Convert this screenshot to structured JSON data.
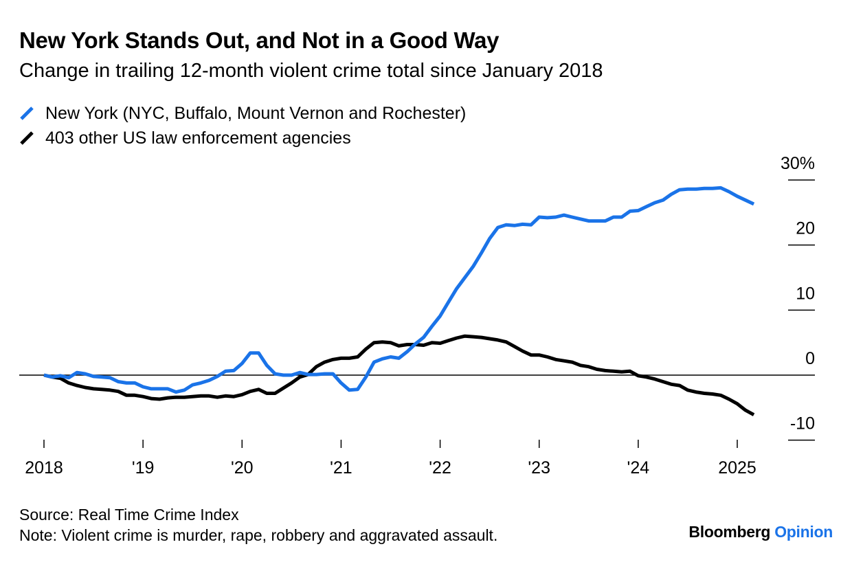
{
  "header": {
    "title": "New York Stands Out, and Not in a Good Way",
    "subtitle": "Change in trailing 12-month violent crime total since January 2018"
  },
  "legend": [
    {
      "label": "New York (NYC, Buffalo, Mount Vernon and Rochester)",
      "color": "#1a73e8"
    },
    {
      "label": "403 other US law enforcement agencies",
      "color": "#000000"
    }
  ],
  "footer": {
    "source": "Source: Real Time Crime Index",
    "note": "Note: Violent crime is murder, rape, robbery and aggravated assault."
  },
  "brand": {
    "name": "Bloomberg",
    "section": "Opinion"
  },
  "chart_data": {
    "type": "line",
    "title": "New York Stands Out, and Not in a Good Way",
    "subtitle": "Change in trailing 12-month violent crime total since January 2018",
    "xlabel": "",
    "ylabel": "",
    "x_unit": "year",
    "xlim": [
      2018,
      2025.5
    ],
    "ylim": [
      -10,
      30
    ],
    "y_ticks": [
      30,
      20,
      10,
      0,
      -10
    ],
    "y_tick_labels": [
      "30%",
      "20",
      "10",
      "0",
      "-10"
    ],
    "x_ticks": [
      2018,
      2019,
      2020,
      2021,
      2022,
      2023,
      2024,
      2025
    ],
    "x_tick_labels": [
      "2018",
      "'19",
      "'20",
      "'21",
      "'22",
      "'23",
      "'24",
      "2025"
    ],
    "grid": false,
    "legend_position": "top-left",
    "series": [
      {
        "name": "New York (NYC, Buffalo, Mount Vernon and Rochester)",
        "color": "#1a73e8",
        "points": [
          [
            2018.0,
            0.0
          ],
          [
            2018.083,
            -0.3
          ],
          [
            2018.167,
            -0.1
          ],
          [
            2018.25,
            -0.4
          ],
          [
            2018.333,
            0.4
          ],
          [
            2018.417,
            0.2
          ],
          [
            2018.5,
            -0.2
          ],
          [
            2018.583,
            -0.3
          ],
          [
            2018.667,
            -0.4
          ],
          [
            2018.75,
            -1.0
          ],
          [
            2018.833,
            -1.2
          ],
          [
            2018.917,
            -1.2
          ],
          [
            2019.0,
            -1.8
          ],
          [
            2019.083,
            -2.1
          ],
          [
            2019.167,
            -2.1
          ],
          [
            2019.25,
            -2.1
          ],
          [
            2019.333,
            -2.6
          ],
          [
            2019.417,
            -2.3
          ],
          [
            2019.5,
            -1.5
          ],
          [
            2019.583,
            -1.2
          ],
          [
            2019.667,
            -0.8
          ],
          [
            2019.75,
            -0.2
          ],
          [
            2019.833,
            0.6
          ],
          [
            2019.917,
            0.7
          ],
          [
            2020.0,
            1.8
          ],
          [
            2020.083,
            3.4
          ],
          [
            2020.167,
            3.4
          ],
          [
            2020.25,
            1.5
          ],
          [
            2020.333,
            0.2
          ],
          [
            2020.417,
            0.0
          ],
          [
            2020.5,
            0.0
          ],
          [
            2020.583,
            0.4
          ],
          [
            2020.667,
            0.1
          ],
          [
            2020.75,
            0.1
          ],
          [
            2020.833,
            0.2
          ],
          [
            2020.917,
            0.2
          ],
          [
            2021.0,
            -1.2
          ],
          [
            2021.083,
            -2.3
          ],
          [
            2021.167,
            -2.2
          ],
          [
            2021.25,
            -0.3
          ],
          [
            2021.333,
            2.0
          ],
          [
            2021.417,
            2.5
          ],
          [
            2021.5,
            2.8
          ],
          [
            2021.583,
            2.6
          ],
          [
            2021.667,
            3.6
          ],
          [
            2021.75,
            4.8
          ],
          [
            2021.833,
            5.8
          ],
          [
            2021.917,
            7.5
          ],
          [
            2022.0,
            9.1
          ],
          [
            2022.083,
            11.2
          ],
          [
            2022.167,
            13.3
          ],
          [
            2022.25,
            15.0
          ],
          [
            2022.333,
            16.7
          ],
          [
            2022.417,
            18.8
          ],
          [
            2022.5,
            21.0
          ],
          [
            2022.583,
            22.7
          ],
          [
            2022.667,
            23.1
          ],
          [
            2022.75,
            23.0
          ],
          [
            2022.833,
            23.2
          ],
          [
            2022.917,
            23.1
          ],
          [
            2023.0,
            24.3
          ],
          [
            2023.083,
            24.2
          ],
          [
            2023.167,
            24.3
          ],
          [
            2023.25,
            24.6
          ],
          [
            2023.333,
            24.3
          ],
          [
            2023.417,
            24.0
          ],
          [
            2023.5,
            23.7
          ],
          [
            2023.583,
            23.7
          ],
          [
            2023.667,
            23.7
          ],
          [
            2023.75,
            24.3
          ],
          [
            2023.833,
            24.3
          ],
          [
            2023.917,
            25.2
          ],
          [
            2024.0,
            25.3
          ],
          [
            2024.083,
            25.9
          ],
          [
            2024.167,
            26.5
          ],
          [
            2024.25,
            26.9
          ],
          [
            2024.333,
            27.8
          ],
          [
            2024.417,
            28.5
          ],
          [
            2024.5,
            28.6
          ],
          [
            2024.583,
            28.6
          ],
          [
            2024.667,
            28.7
          ],
          [
            2024.75,
            28.7
          ],
          [
            2024.833,
            28.8
          ],
          [
            2024.917,
            28.2
          ],
          [
            2025.0,
            27.5
          ],
          [
            2025.083,
            26.9
          ],
          [
            2025.167,
            26.3
          ]
        ]
      },
      {
        "name": "403 other US law enforcement agencies",
        "color": "#000000",
        "points": [
          [
            2018.0,
            0.0
          ],
          [
            2018.083,
            -0.3
          ],
          [
            2018.167,
            -0.5
          ],
          [
            2018.25,
            -1.2
          ],
          [
            2018.333,
            -1.6
          ],
          [
            2018.417,
            -1.9
          ],
          [
            2018.5,
            -2.1
          ],
          [
            2018.583,
            -2.2
          ],
          [
            2018.667,
            -2.3
          ],
          [
            2018.75,
            -2.5
          ],
          [
            2018.833,
            -3.1
          ],
          [
            2018.917,
            -3.1
          ],
          [
            2019.0,
            -3.3
          ],
          [
            2019.083,
            -3.6
          ],
          [
            2019.167,
            -3.7
          ],
          [
            2019.25,
            -3.5
          ],
          [
            2019.333,
            -3.4
          ],
          [
            2019.417,
            -3.4
          ],
          [
            2019.5,
            -3.3
          ],
          [
            2019.583,
            -3.2
          ],
          [
            2019.667,
            -3.2
          ],
          [
            2019.75,
            -3.4
          ],
          [
            2019.833,
            -3.2
          ],
          [
            2019.917,
            -3.3
          ],
          [
            2020.0,
            -3.0
          ],
          [
            2020.083,
            -2.5
          ],
          [
            2020.167,
            -2.2
          ],
          [
            2020.25,
            -2.8
          ],
          [
            2020.333,
            -2.8
          ],
          [
            2020.417,
            -2.0
          ],
          [
            2020.5,
            -1.2
          ],
          [
            2020.583,
            -0.3
          ],
          [
            2020.667,
            0.1
          ],
          [
            2020.75,
            1.3
          ],
          [
            2020.833,
            2.0
          ],
          [
            2020.917,
            2.4
          ],
          [
            2021.0,
            2.6
          ],
          [
            2021.083,
            2.6
          ],
          [
            2021.167,
            2.8
          ],
          [
            2021.25,
            4.0
          ],
          [
            2021.333,
            5.0
          ],
          [
            2021.417,
            5.1
          ],
          [
            2021.5,
            5.0
          ],
          [
            2021.583,
            4.5
          ],
          [
            2021.667,
            4.7
          ],
          [
            2021.75,
            4.7
          ],
          [
            2021.833,
            4.6
          ],
          [
            2021.917,
            5.0
          ],
          [
            2022.0,
            4.9
          ],
          [
            2022.083,
            5.3
          ],
          [
            2022.167,
            5.7
          ],
          [
            2022.25,
            6.0
          ],
          [
            2022.333,
            5.9
          ],
          [
            2022.417,
            5.8
          ],
          [
            2022.5,
            5.6
          ],
          [
            2022.583,
            5.4
          ],
          [
            2022.667,
            5.1
          ],
          [
            2022.75,
            4.4
          ],
          [
            2022.833,
            3.7
          ],
          [
            2022.917,
            3.1
          ],
          [
            2023.0,
            3.1
          ],
          [
            2023.083,
            2.8
          ],
          [
            2023.167,
            2.4
          ],
          [
            2023.25,
            2.2
          ],
          [
            2023.333,
            2.0
          ],
          [
            2023.417,
            1.5
          ],
          [
            2023.5,
            1.3
          ],
          [
            2023.583,
            0.9
          ],
          [
            2023.667,
            0.7
          ],
          [
            2023.75,
            0.6
          ],
          [
            2023.833,
            0.5
          ],
          [
            2023.917,
            0.6
          ],
          [
            2024.0,
            -0.1
          ],
          [
            2024.083,
            -0.3
          ],
          [
            2024.167,
            -0.6
          ],
          [
            2024.25,
            -1.0
          ],
          [
            2024.333,
            -1.4
          ],
          [
            2024.417,
            -1.6
          ],
          [
            2024.5,
            -2.3
          ],
          [
            2024.583,
            -2.6
          ],
          [
            2024.667,
            -2.8
          ],
          [
            2024.75,
            -2.9
          ],
          [
            2024.833,
            -3.1
          ],
          [
            2024.917,
            -3.7
          ],
          [
            2025.0,
            -4.4
          ],
          [
            2025.083,
            -5.4
          ],
          [
            2025.167,
            -6.1
          ]
        ]
      }
    ]
  }
}
